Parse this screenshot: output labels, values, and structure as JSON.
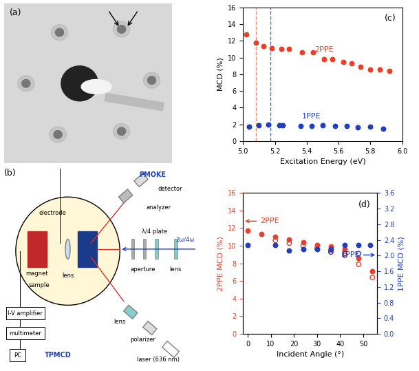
{
  "panels": {
    "a": {
      "label": "(a)"
    },
    "b": {
      "label": "(b)",
      "parts": {
        "magnet": "magnet",
        "sample": "sample",
        "electrode": "electrode",
        "lens_inner": "lens",
        "pmoke": "PMOKE",
        "detector": "detector",
        "analyzer": "analyzer",
        "plate": "λ/4 plate",
        "aperture": "aperture",
        "lens_outer": "lens",
        "beam": "2ω/4ω",
        "lens_laser": "lens",
        "polarizer": "polarizer",
        "laser": "laser (636 nm)",
        "amplifier": "I-V amplifier",
        "multimeter": "multimeter",
        "pc": "PC",
        "tpmcd": "TPMCD"
      }
    }
  },
  "chart_data": [
    {
      "panel": "(c)",
      "type": "scatter",
      "xlabel": "Excitation Energy (eV)",
      "ylabel": "MCD (%)",
      "xlim": [
        5.0,
        6.0
      ],
      "xticks": [
        5.0,
        5.2,
        5.4,
        5.6,
        5.8,
        6.0
      ],
      "ylim": [
        0,
        16
      ],
      "yticks": [
        0,
        2,
        4,
        6,
        8,
        10,
        12,
        14,
        16
      ],
      "reference_lines": [
        {
          "x": 5.08,
          "color": "#f0906a"
        },
        {
          "x": 5.17,
          "color": "#4a6fd8"
        }
      ],
      "series": [
        {
          "name": "2PPE",
          "color": "#e8402a",
          "marker": "filled",
          "x": [
            5.02,
            5.08,
            5.13,
            5.18,
            5.24,
            5.29,
            5.37,
            5.44,
            5.51,
            5.56,
            5.63,
            5.68,
            5.74,
            5.8,
            5.86,
            5.92
          ],
          "values": [
            12.8,
            11.8,
            11.4,
            11.1,
            11.0,
            11.0,
            10.6,
            10.6,
            9.8,
            9.8,
            9.5,
            9.3,
            8.9,
            8.6,
            8.6,
            8.4
          ]
        },
        {
          "name": "1PPE",
          "color": "#1f3fbf",
          "marker": "filled",
          "x": [
            5.04,
            5.1,
            5.16,
            5.23,
            5.25,
            5.36,
            5.43,
            5.5,
            5.58,
            5.65,
            5.72,
            5.8,
            5.88
          ],
          "values": [
            1.7,
            1.9,
            2.0,
            1.9,
            1.9,
            1.8,
            1.8,
            1.9,
            1.8,
            1.8,
            1.6,
            1.7,
            1.5
          ]
        }
      ]
    },
    {
      "panel": "(d)",
      "type": "scatter",
      "xlabel": "Incident Angle (°)",
      "ylabel": "2PPE MCD (%)",
      "y2label": "1PPE MCD (%)",
      "xlim": [
        -2,
        56
      ],
      "xticks": [
        0,
        10,
        20,
        30,
        40,
        50
      ],
      "ylim": [
        0,
        16
      ],
      "yticks": [
        0,
        2,
        4,
        6,
        8,
        10,
        12,
        14,
        16
      ],
      "y2lim": [
        0.0,
        3.6
      ],
      "y2ticks": [
        0.0,
        0.4,
        0.8,
        1.2,
        1.6,
        2.0,
        2.4,
        2.8,
        3.2,
        3.6
      ],
      "series": [
        {
          "name": "2PPE",
          "color": "#e8402a",
          "marker": "filled",
          "x": [
            0,
            6,
            12,
            18,
            24,
            30,
            36,
            42,
            48,
            54
          ],
          "values": [
            11.7,
            11.3,
            11.0,
            10.7,
            10.4,
            10.1,
            9.9,
            9.6,
            8.6,
            7.1
          ]
        },
        {
          "color": "#e8402a",
          "marker": "open",
          "x": [
            12,
            18,
            24,
            30,
            36,
            42,
            48,
            54
          ],
          "values": [
            10.6,
            10.3,
            10.0,
            9.7,
            9.5,
            8.9,
            7.9,
            6.4
          ]
        },
        {
          "name": "1PPE",
          "color": "#1f3fbf",
          "marker": "filled",
          "axis": "y2",
          "x": [
            0,
            12,
            18,
            24,
            30,
            36,
            42,
            48,
            53
          ],
          "values": [
            2.27,
            2.27,
            2.12,
            2.16,
            2.16,
            2.16,
            2.27,
            2.27,
            2.27
          ]
        },
        {
          "color": "#1f3fbf",
          "marker": "open",
          "axis": "y2",
          "x": [
            36,
            42,
            48
          ],
          "values": [
            2.09,
            2.05,
            2.05
          ]
        }
      ]
    }
  ]
}
